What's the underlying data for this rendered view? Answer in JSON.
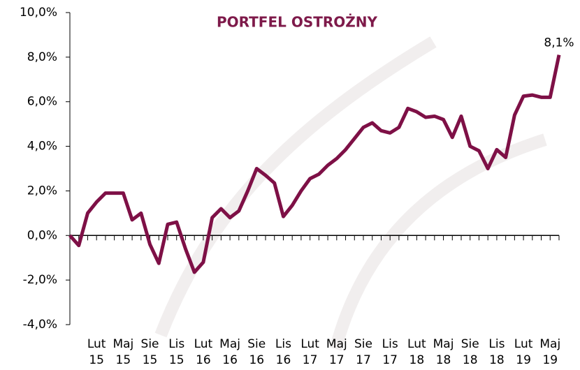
{
  "chart_data": {
    "type": "line",
    "title": "PORTFEL OSTROŻNY",
    "categories": [
      null,
      null,
      null,
      "Lut 15",
      null,
      null,
      "Maj 15",
      null,
      null,
      "Sie 15",
      null,
      null,
      "Lis 15",
      null,
      null,
      "Lut 16",
      null,
      null,
      "Maj 16",
      null,
      null,
      "Sie 16",
      null,
      null,
      "Lis 16",
      null,
      null,
      "Lut 17",
      null,
      null,
      "Maj 17",
      null,
      null,
      "Sie 17",
      null,
      null,
      "Lis 17",
      null,
      null,
      "Lut 18",
      null,
      null,
      "Maj 18",
      null,
      null,
      "Sie 18",
      null,
      null,
      "Lis 18",
      null,
      null,
      "Lut 19",
      null,
      null,
      "Maj 19",
      null
    ],
    "series": [
      {
        "name": "PORTFEL OSTROŻNY",
        "color": "#7e1046",
        "values": [
          0.0,
          -0.45,
          1.0,
          1.5,
          1.9,
          1.9,
          1.9,
          0.7,
          1.0,
          -0.4,
          -1.25,
          0.5,
          0.6,
          -0.6,
          -1.65,
          -1.2,
          0.8,
          1.2,
          0.8,
          1.1,
          2.0,
          3.0,
          2.7,
          2.35,
          0.85,
          1.35,
          2.0,
          2.55,
          2.75,
          3.15,
          3.45,
          3.85,
          4.35,
          4.85,
          5.05,
          4.7,
          4.6,
          4.85,
          5.7,
          5.55,
          5.3,
          5.35,
          5.2,
          4.4,
          5.35,
          4.0,
          3.8,
          3.0,
          3.85,
          3.5,
          5.4,
          6.25,
          6.3,
          6.2,
          6.2,
          8.1
        ],
        "value_labels": [
          null,
          null,
          null,
          null,
          null,
          null,
          null,
          null,
          null,
          null,
          null,
          null,
          null,
          null,
          null,
          null,
          null,
          null,
          null,
          null,
          null,
          null,
          null,
          null,
          null,
          null,
          null,
          null,
          null,
          null,
          null,
          null,
          null,
          null,
          null,
          null,
          null,
          null,
          null,
          null,
          null,
          null,
          null,
          null,
          null,
          null,
          null,
          null,
          null,
          null,
          null,
          null,
          null,
          null,
          null,
          "8,1%"
        ]
      }
    ],
    "ylim": [
      -4,
      10
    ],
    "yticks": [
      {
        "value": -4,
        "label": "-4,0%"
      },
      {
        "value": -2,
        "label": "-2,0%"
      },
      {
        "value": 0,
        "label": "0,0%"
      },
      {
        "value": 2,
        "label": "2,0%"
      },
      {
        "value": 4,
        "label": "4,0%"
      },
      {
        "value": 6,
        "label": "6,0%"
      },
      {
        "value": 8,
        "label": "8,0%"
      },
      {
        "value": 10,
        "label": "10,0%"
      }
    ]
  }
}
